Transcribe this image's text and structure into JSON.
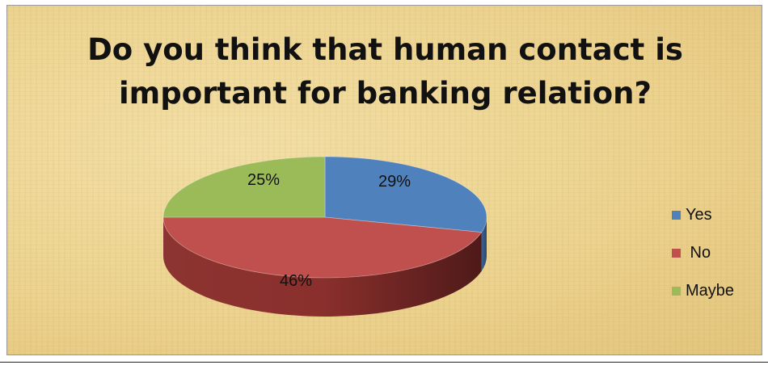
{
  "chart_data": {
    "type": "pie",
    "title": "Do you think that human contact is\nimportant for banking relation?",
    "categories": [
      "Yes",
      "No",
      "Maybe"
    ],
    "values": [
      29,
      46,
      25
    ],
    "labels": [
      "29%",
      "46%",
      "25%"
    ],
    "colors": [
      "#4f81bd",
      "#c0504d",
      "#9bbb59"
    ],
    "legend_labels": [
      "Yes",
      " No",
      "Maybe"
    ],
    "legend_position": "right",
    "style": "3d-pie"
  }
}
